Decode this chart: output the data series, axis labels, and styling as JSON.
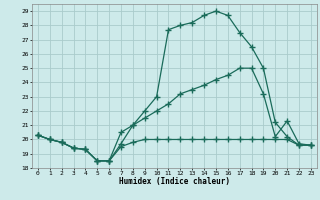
{
  "xlabel": "Humidex (Indice chaleur)",
  "bg_color": "#cdeaea",
  "grid_color": "#aacccc",
  "line_color": "#1a6b5a",
  "xlim": [
    -0.5,
    23.5
  ],
  "ylim": [
    18,
    29.5
  ],
  "xticks": [
    0,
    1,
    2,
    3,
    4,
    5,
    6,
    7,
    8,
    9,
    10,
    11,
    12,
    13,
    14,
    15,
    16,
    17,
    18,
    19,
    20,
    21,
    22,
    23
  ],
  "yticks": [
    18,
    19,
    20,
    21,
    22,
    23,
    24,
    25,
    26,
    27,
    28,
    29
  ],
  "line1_x": [
    0,
    1,
    2,
    3,
    4,
    5,
    6,
    7,
    8,
    9,
    10,
    11,
    12,
    13,
    14,
    15,
    16,
    17,
    18,
    19,
    20,
    21,
    22,
    23
  ],
  "line1_y": [
    20.3,
    20.0,
    19.8,
    19.4,
    19.3,
    18.5,
    18.5,
    19.5,
    19.8,
    20.0,
    20.0,
    20.0,
    20.0,
    20.0,
    20.0,
    20.0,
    20.0,
    20.0,
    20.0,
    20.0,
    20.0,
    20.0,
    19.6,
    19.6
  ],
  "line2_x": [
    0,
    1,
    2,
    3,
    4,
    5,
    6,
    7,
    8,
    9,
    10,
    11,
    12,
    13,
    14,
    15,
    16,
    17,
    18,
    19,
    20,
    21,
    22,
    23
  ],
  "line2_y": [
    20.3,
    20.0,
    19.8,
    19.4,
    19.3,
    18.5,
    18.5,
    19.7,
    21.0,
    22.0,
    23.0,
    27.7,
    28.0,
    28.2,
    28.7,
    29.0,
    28.7,
    27.5,
    26.5,
    25.0,
    21.2,
    20.2,
    19.6,
    19.6
  ],
  "line3_x": [
    0,
    1,
    2,
    3,
    4,
    5,
    6,
    7,
    8,
    9,
    10,
    11,
    12,
    13,
    14,
    15,
    16,
    17,
    18,
    19,
    20,
    21,
    22,
    23
  ],
  "line3_y": [
    20.3,
    20.0,
    19.8,
    19.4,
    19.3,
    18.5,
    18.5,
    20.5,
    21.0,
    21.5,
    22.0,
    22.5,
    23.2,
    23.5,
    23.8,
    24.2,
    24.5,
    25.0,
    25.0,
    23.2,
    20.2,
    21.3,
    19.7,
    19.6
  ]
}
